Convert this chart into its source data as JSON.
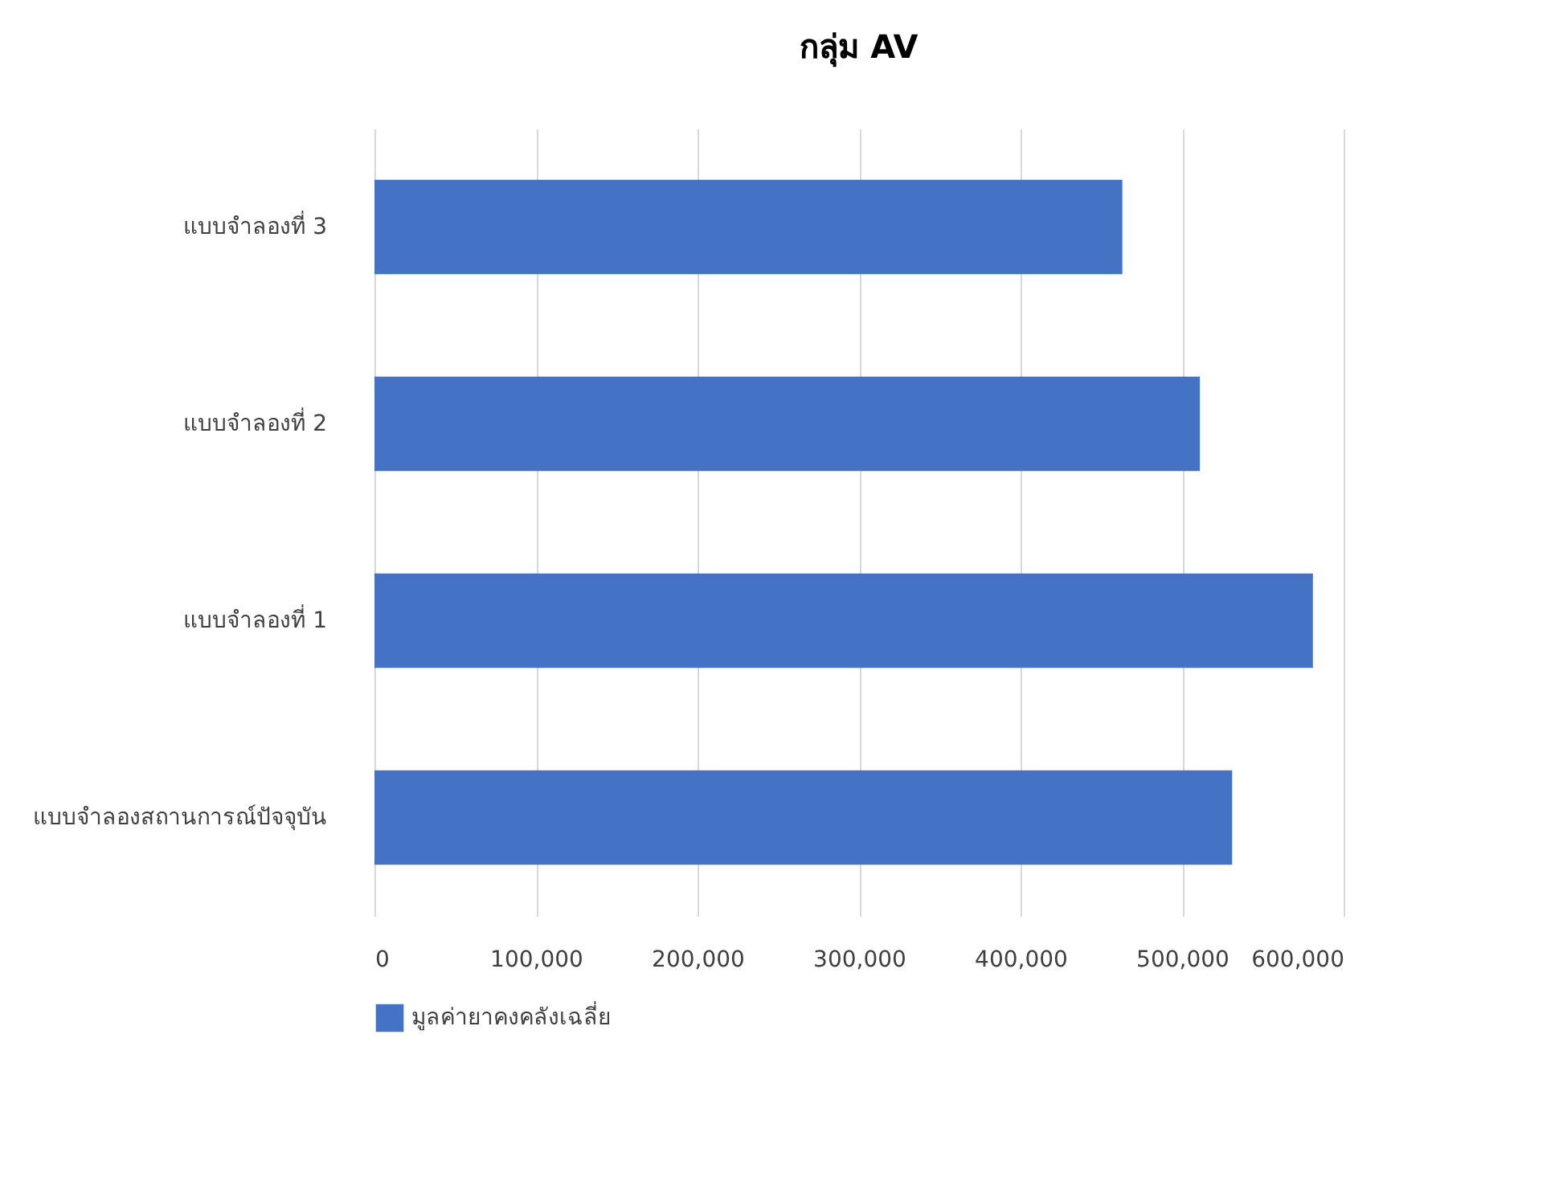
{
  "chart_data": {
    "type": "bar",
    "title": "กลุ่ม AV",
    "orientation": "horizontal",
    "categories": [
      "แบบจำลองที่ 3",
      "แบบจำลองที่ 2",
      "แบบจำลองที่ 1",
      "แบบจำลองสถานการณ์ปัจจุบัน"
    ],
    "series": [
      {
        "name": "มูลค่ายาคงคลังเฉลี่ย",
        "color": "#4472c4",
        "values": [
          463000,
          511000,
          581000,
          531000
        ]
      }
    ],
    "xlim": [
      0,
      600000
    ],
    "xticks": [
      0,
      {
        "value": 100000,
        "label": "100,000"
      },
      {
        "value": 200000,
        "label": "200,000"
      },
      {
        "value": 300000,
        "label": "300,000"
      },
      {
        "value": 400000,
        "label": "400,000"
      },
      {
        "value": 500000,
        "label": "500,000"
      },
      {
        "value": 600000,
        "label": "600,000"
      }
    ],
    "grid": "x",
    "legend": "bottom"
  }
}
